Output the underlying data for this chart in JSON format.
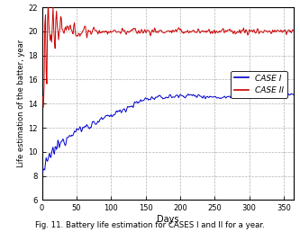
{
  "xlabel": "Days",
  "ylabel": "Life estimation of the batter, year",
  "xlim": [
    0,
    365
  ],
  "ylim": [
    6,
    22
  ],
  "yticks": [
    6,
    8,
    10,
    12,
    14,
    16,
    18,
    20,
    22
  ],
  "xticks": [
    0,
    50,
    100,
    150,
    200,
    250,
    300,
    350
  ],
  "case1_color": "#0000cc",
  "case2_color": "#cc0000",
  "legend_labels": [
    "CASE I",
    "CASE II"
  ],
  "caption": "Fig. 11. Battery life estimation for CASES I and II for a year.",
  "caption_bg": "#b8d8e8",
  "grid_color": "#aaaaaa",
  "grid_style": "--",
  "fig_width": 3.33,
  "fig_height": 2.68,
  "dpi": 100
}
